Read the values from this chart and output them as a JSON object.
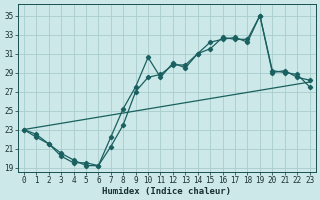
{
  "xlabel": "Humidex (Indice chaleur)",
  "bg_color": "#cce8e8",
  "grid_color": "#aacccc",
  "line_color": "#1a6060",
  "xlim": [
    -0.5,
    23.5
  ],
  "ylim": [
    18.5,
    36.2
  ],
  "xticks": [
    0,
    1,
    2,
    3,
    4,
    5,
    6,
    7,
    8,
    9,
    10,
    11,
    12,
    13,
    14,
    15,
    16,
    17,
    18,
    19,
    20,
    21,
    22,
    23
  ],
  "yticks": [
    19,
    21,
    23,
    25,
    27,
    29,
    31,
    33,
    35
  ],
  "line1_x": [
    0,
    1,
    2,
    3,
    4,
    5,
    6,
    7,
    8,
    9,
    10,
    11,
    12,
    13,
    14,
    15,
    16,
    17,
    18,
    19,
    20,
    21,
    22,
    23
  ],
  "line1_y": [
    23.0,
    22.5,
    21.5,
    20.5,
    19.8,
    19.2,
    19.2,
    22.2,
    25.2,
    27.5,
    30.6,
    28.5,
    30.0,
    29.5,
    31.0,
    31.5,
    32.7,
    32.5,
    32.5,
    35.0,
    29.0,
    29.2,
    28.5,
    28.2
  ],
  "line2_x": [
    0,
    1,
    2,
    3,
    4,
    5,
    6,
    7,
    8,
    9,
    10,
    11,
    12,
    13,
    14,
    15,
    16,
    17,
    18,
    19,
    20,
    21,
    22,
    23
  ],
  "line2_y": [
    23.0,
    22.2,
    21.5,
    20.2,
    19.5,
    19.5,
    19.2,
    21.2,
    23.5,
    27.0,
    28.5,
    28.8,
    29.8,
    29.8,
    31.0,
    32.2,
    32.5,
    32.7,
    32.2,
    35.0,
    29.2,
    29.0,
    28.8,
    27.5
  ],
  "line3_x": [
    0,
    23
  ],
  "line3_y": [
    23.0,
    28.0
  ]
}
